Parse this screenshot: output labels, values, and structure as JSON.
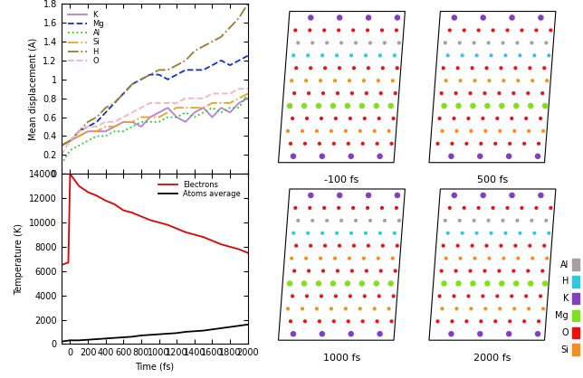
{
  "chart_data": [
    {
      "type": "line",
      "y_label": "Mean displacement (A)",
      "xlim": [
        -100,
        2000
      ],
      "xticks": [
        0,
        200,
        400,
        600,
        800,
        1000,
        1200,
        1400,
        1600,
        1800,
        2000
      ],
      "ylim": [
        0,
        1.8
      ],
      "yticks": [
        0,
        0.2,
        0.4,
        0.6,
        0.8,
        1,
        1.2,
        1.4,
        1.6,
        1.8
      ],
      "tick_labels": "y",
      "legend": "upper left",
      "x": [
        -100,
        0,
        100,
        200,
        300,
        400,
        500,
        600,
        700,
        800,
        900,
        1000,
        1100,
        1200,
        1300,
        1400,
        1500,
        1600,
        1700,
        1800,
        1900,
        2000
      ],
      "series": [
        {
          "name": "K",
          "color": "#b57edc",
          "line_style": "solid",
          "values": [
            0.3,
            0.35,
            0.4,
            0.45,
            0.45,
            0.45,
            0.5,
            0.55,
            0.55,
            0.5,
            0.6,
            0.65,
            0.7,
            0.6,
            0.55,
            0.65,
            0.7,
            0.6,
            0.7,
            0.65,
            0.75,
            0.8
          ]
        },
        {
          "name": "Mg",
          "color": "#1030d0",
          "line_style": "dashed",
          "values": [
            0.3,
            0.35,
            0.45,
            0.5,
            0.55,
            0.65,
            0.75,
            0.85,
            0.95,
            1.0,
            1.05,
            1.05,
            1.0,
            1.05,
            1.1,
            1.1,
            1.1,
            1.15,
            1.2,
            1.15,
            1.2,
            1.25
          ]
        },
        {
          "name": "Al",
          "color": "#22cc22",
          "line_style": "dotted",
          "values": [
            0.1,
            0.25,
            0.3,
            0.35,
            0.4,
            0.4,
            0.45,
            0.45,
            0.5,
            0.55,
            0.55,
            0.55,
            0.6,
            0.6,
            0.65,
            0.6,
            0.65,
            0.7,
            0.65,
            0.7,
            0.7,
            0.85
          ]
        },
        {
          "name": "Si",
          "color": "#f0a020",
          "line_style": "dashdot",
          "values": [
            0.3,
            0.35,
            0.4,
            0.45,
            0.45,
            0.5,
            0.5,
            0.55,
            0.55,
            0.6,
            0.6,
            0.6,
            0.65,
            0.7,
            0.7,
            0.7,
            0.7,
            0.75,
            0.75,
            0.75,
            0.8,
            0.85
          ]
        },
        {
          "name": "H",
          "color": "#9c7a2c",
          "line_style": "dashdot",
          "values": [
            0.3,
            0.35,
            0.45,
            0.55,
            0.6,
            0.7,
            0.75,
            0.85,
            0.95,
            1.0,
            1.05,
            1.1,
            1.1,
            1.15,
            1.2,
            1.3,
            1.35,
            1.4,
            1.45,
            1.55,
            1.65,
            1.8
          ]
        },
        {
          "name": "O",
          "color": "#f4b0c8",
          "line_style": "dashed",
          "values": [
            0.2,
            0.35,
            0.45,
            0.5,
            0.5,
            0.55,
            0.55,
            0.6,
            0.65,
            0.7,
            0.75,
            0.75,
            0.75,
            0.75,
            0.8,
            0.8,
            0.8,
            0.85,
            0.85,
            0.85,
            0.9,
            0.9
          ]
        }
      ]
    },
    {
      "type": "line",
      "x_label": "Time (fs)",
      "y_label": "Temperature (K)",
      "xlim": [
        -100,
        2000
      ],
      "xticks": [
        0,
        200,
        400,
        600,
        800,
        1000,
        1200,
        1400,
        1600,
        1800,
        2000
      ],
      "ylim": [
        0,
        14000
      ],
      "yticks": [
        0,
        2000,
        4000,
        6000,
        8000,
        10000,
        12000,
        14000
      ],
      "legend": "upper right",
      "series": [
        {
          "name": "Electrons",
          "color": "#e00000",
          "line_style": "solid",
          "x": [
            -100,
            -20,
            0,
            100,
            200,
            300,
            400,
            500,
            600,
            700,
            800,
            900,
            1000,
            1100,
            1200,
            1300,
            1400,
            1500,
            1600,
            1700,
            1800,
            1900,
            2000
          ],
          "values": [
            6500,
            6700,
            14000,
            13000,
            12500,
            12200,
            11800,
            11500,
            11000,
            10800,
            10500,
            10200,
            10000,
            9800,
            9500,
            9200,
            9000,
            8800,
            8500,
            8200,
            8000,
            7800,
            7500
          ]
        },
        {
          "name": "Atoms average",
          "color": "#000000",
          "line_style": "solid",
          "x": [
            -100,
            0,
            100,
            200,
            300,
            400,
            500,
            600,
            700,
            800,
            900,
            1000,
            1100,
            1200,
            1300,
            1400,
            1500,
            1600,
            1700,
            1800,
            1900,
            2000
          ],
          "values": [
            200,
            300,
            300,
            350,
            400,
            450,
            500,
            550,
            600,
            700,
            750,
            800,
            850,
            900,
            1000,
            1050,
            1100,
            1200,
            1300,
            1400,
            1500,
            1600
          ]
        }
      ]
    }
  ],
  "structures": {
    "panels": [
      {
        "label": "-100 fs"
      },
      {
        "label": "500 fs"
      },
      {
        "label": "1000 fs"
      },
      {
        "label": "2000 fs"
      }
    ],
    "legend": [
      {
        "name": "Al",
        "color": "#a8a0a0"
      },
      {
        "name": "H",
        "color": "#30c8e0"
      },
      {
        "name": "K",
        "color": "#8040c0"
      },
      {
        "name": "Mg",
        "color": "#80e020"
      },
      {
        "name": "O",
        "color": "#ee1010"
      },
      {
        "name": "Si",
        "color": "#f09020"
      }
    ]
  }
}
